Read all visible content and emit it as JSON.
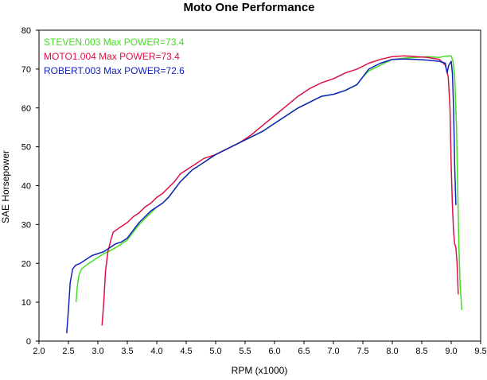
{
  "chart_data": {
    "type": "line",
    "title": "Moto One Performance",
    "xlabel": "RPM (x1000)",
    "ylabel": "SAE Horsepower",
    "xlim": [
      2.0,
      9.5
    ],
    "ylim": [
      0,
      80
    ],
    "x_ticks": [
      "2.0",
      "2.5",
      "3.0",
      "3.5",
      "4.0",
      "4.5",
      "5.0",
      "5.5",
      "6.0",
      "6.5",
      "7.0",
      "7.5",
      "8.0",
      "8.5",
      "9.0",
      "9.5"
    ],
    "y_ticks": [
      "0",
      "10",
      "20",
      "30",
      "40",
      "50",
      "60",
      "70",
      "80"
    ],
    "grid": false,
    "legend_position": "top-left",
    "series": [
      {
        "name": "STEVEN.003  Max POWER=73.4",
        "color": "#44dd22",
        "points": [
          [
            2.63,
            10
          ],
          [
            2.65,
            14
          ],
          [
            2.68,
            17
          ],
          [
            2.72,
            18.5
          ],
          [
            2.8,
            19.5
          ],
          [
            2.9,
            20.5
          ],
          [
            3.0,
            21.5
          ],
          [
            3.1,
            22.5
          ],
          [
            3.2,
            23.2
          ],
          [
            3.3,
            24
          ],
          [
            3.4,
            25
          ],
          [
            3.5,
            26
          ],
          [
            3.6,
            28
          ],
          [
            3.7,
            30
          ],
          [
            3.8,
            31.5
          ],
          [
            3.9,
            33
          ],
          [
            4.0,
            34.5
          ],
          [
            4.1,
            35.5
          ],
          [
            4.2,
            37
          ],
          [
            4.3,
            39
          ],
          [
            4.4,
            41
          ],
          [
            4.5,
            42.5
          ],
          [
            4.6,
            44
          ],
          [
            4.7,
            45
          ],
          [
            4.8,
            46
          ],
          [
            4.9,
            47
          ],
          [
            5.0,
            48
          ],
          [
            5.2,
            49.5
          ],
          [
            5.4,
            51
          ],
          [
            5.6,
            52.5
          ],
          [
            5.8,
            54
          ],
          [
            6.0,
            56
          ],
          [
            6.2,
            58
          ],
          [
            6.4,
            60
          ],
          [
            6.6,
            61.5
          ],
          [
            6.8,
            63
          ],
          [
            7.0,
            63.5
          ],
          [
            7.2,
            64.5
          ],
          [
            7.4,
            66
          ],
          [
            7.5,
            68
          ],
          [
            7.6,
            69.5
          ],
          [
            7.8,
            71
          ],
          [
            8.0,
            72.5
          ],
          [
            8.2,
            72.8
          ],
          [
            8.4,
            73
          ],
          [
            8.6,
            73.2
          ],
          [
            8.8,
            73
          ],
          [
            8.9,
            73.3
          ],
          [
            9.0,
            73.4
          ],
          [
            9.03,
            72
          ],
          [
            9.06,
            68
          ],
          [
            9.09,
            55
          ],
          [
            9.11,
            40
          ],
          [
            9.13,
            25
          ],
          [
            9.15,
            15
          ],
          [
            9.18,
            8
          ]
        ]
      },
      {
        "name": "MOTO1.004  Max POWER=73.4",
        "color": "#dd1144",
        "points": [
          [
            3.07,
            4
          ],
          [
            3.1,
            10
          ],
          [
            3.13,
            18
          ],
          [
            3.17,
            23
          ],
          [
            3.22,
            26
          ],
          [
            3.26,
            28
          ],
          [
            3.35,
            29
          ],
          [
            3.5,
            30.5
          ],
          [
            3.6,
            32
          ],
          [
            3.7,
            33
          ],
          [
            3.8,
            34.5
          ],
          [
            3.9,
            35.5
          ],
          [
            4.0,
            37
          ],
          [
            4.1,
            38
          ],
          [
            4.2,
            39.5
          ],
          [
            4.3,
            41
          ],
          [
            4.4,
            43
          ],
          [
            4.5,
            44
          ],
          [
            4.6,
            45
          ],
          [
            4.7,
            46
          ],
          [
            4.8,
            47
          ],
          [
            5.0,
            48
          ],
          [
            5.2,
            49.5
          ],
          [
            5.4,
            51
          ],
          [
            5.6,
            53
          ],
          [
            5.8,
            55.5
          ],
          [
            6.0,
            58
          ],
          [
            6.2,
            60.5
          ],
          [
            6.4,
            63
          ],
          [
            6.6,
            65
          ],
          [
            6.8,
            66.5
          ],
          [
            7.0,
            67.5
          ],
          [
            7.2,
            69
          ],
          [
            7.4,
            70
          ],
          [
            7.6,
            71.5
          ],
          [
            7.8,
            72.5
          ],
          [
            8.0,
            73.2
          ],
          [
            8.2,
            73.4
          ],
          [
            8.4,
            73.2
          ],
          [
            8.6,
            73
          ],
          [
            8.8,
            72.5
          ],
          [
            8.9,
            71
          ],
          [
            8.95,
            68
          ],
          [
            8.98,
            60
          ],
          [
            9.0,
            45
          ],
          [
            9.02,
            35
          ],
          [
            9.04,
            28
          ],
          [
            9.06,
            25
          ],
          [
            9.08,
            24
          ],
          [
            9.1,
            20
          ],
          [
            9.12,
            12
          ]
        ]
      },
      {
        "name": "ROBERT.003  Max POWER=72.6",
        "color": "#1122bb",
        "points": [
          [
            2.47,
            2
          ],
          [
            2.5,
            8
          ],
          [
            2.53,
            15
          ],
          [
            2.57,
            18.5
          ],
          [
            2.62,
            19.5
          ],
          [
            2.7,
            20
          ],
          [
            2.8,
            21
          ],
          [
            2.9,
            22
          ],
          [
            3.0,
            22.5
          ],
          [
            3.1,
            23
          ],
          [
            3.2,
            24
          ],
          [
            3.3,
            25
          ],
          [
            3.4,
            25.5
          ],
          [
            3.5,
            26.5
          ],
          [
            3.6,
            28.5
          ],
          [
            3.7,
            30.5
          ],
          [
            3.8,
            32
          ],
          [
            3.9,
            33.5
          ],
          [
            4.0,
            34.5
          ],
          [
            4.1,
            35.5
          ],
          [
            4.2,
            37
          ],
          [
            4.3,
            39
          ],
          [
            4.4,
            41
          ],
          [
            4.5,
            42.5
          ],
          [
            4.6,
            44
          ],
          [
            4.7,
            45
          ],
          [
            4.8,
            46
          ],
          [
            4.9,
            47
          ],
          [
            5.0,
            48
          ],
          [
            5.2,
            49.5
          ],
          [
            5.4,
            51
          ],
          [
            5.6,
            52.5
          ],
          [
            5.8,
            54
          ],
          [
            6.0,
            56
          ],
          [
            6.2,
            58
          ],
          [
            6.4,
            60
          ],
          [
            6.6,
            61.5
          ],
          [
            6.8,
            63
          ],
          [
            7.0,
            63.5
          ],
          [
            7.2,
            64.5
          ],
          [
            7.4,
            66
          ],
          [
            7.5,
            68
          ],
          [
            7.6,
            70
          ],
          [
            7.8,
            71.5
          ],
          [
            8.0,
            72.5
          ],
          [
            8.2,
            72.6
          ],
          [
            8.4,
            72.5
          ],
          [
            8.6,
            72.3
          ],
          [
            8.8,
            72
          ],
          [
            8.9,
            71.5
          ],
          [
            8.93,
            69
          ],
          [
            8.96,
            71
          ],
          [
            9.0,
            72
          ],
          [
            9.02,
            69
          ],
          [
            9.04,
            60
          ],
          [
            9.06,
            45
          ],
          [
            9.08,
            35
          ]
        ]
      }
    ]
  }
}
